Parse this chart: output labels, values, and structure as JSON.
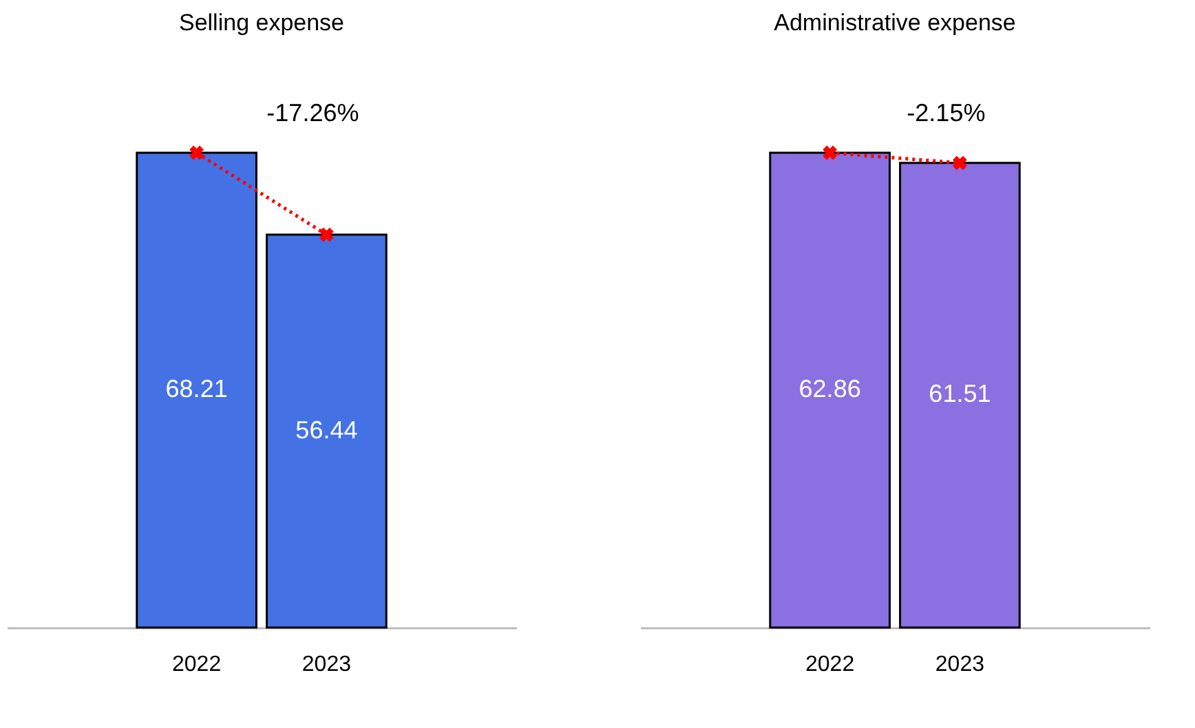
{
  "chart_data": [
    {
      "type": "bar",
      "title": "Selling expense",
      "categories": [
        "2022",
        "2023"
      ],
      "tick_labels": "x",
      "grid": false,
      "series": [
        {
          "color": "#4472e4",
          "values": [
            68.21,
            56.44
          ],
          "value_labels": [
            "68.21",
            "56.44"
          ]
        },
        {
          "type": "line",
          "color": "#ff0000",
          "values": [
            68.21,
            56.44
          ],
          "marker": "cross",
          "line_style": "dotted"
        }
      ],
      "annotations": [
        "-17.26%"
      ]
    },
    {
      "type": "bar",
      "title": "Administrative expense",
      "categories": [
        "2022",
        "2023"
      ],
      "tick_labels": "x",
      "grid": false,
      "series": [
        {
          "color": "#8a70e0",
          "values": [
            62.86,
            61.51
          ],
          "value_labels": [
            "62.86",
            "61.51"
          ]
        },
        {
          "type": "line",
          "color": "#ff0000",
          "values": [
            62.86,
            61.51
          ],
          "marker": "cross",
          "line_style": "dotted"
        }
      ],
      "annotations": [
        "-2.15%"
      ]
    }
  ]
}
